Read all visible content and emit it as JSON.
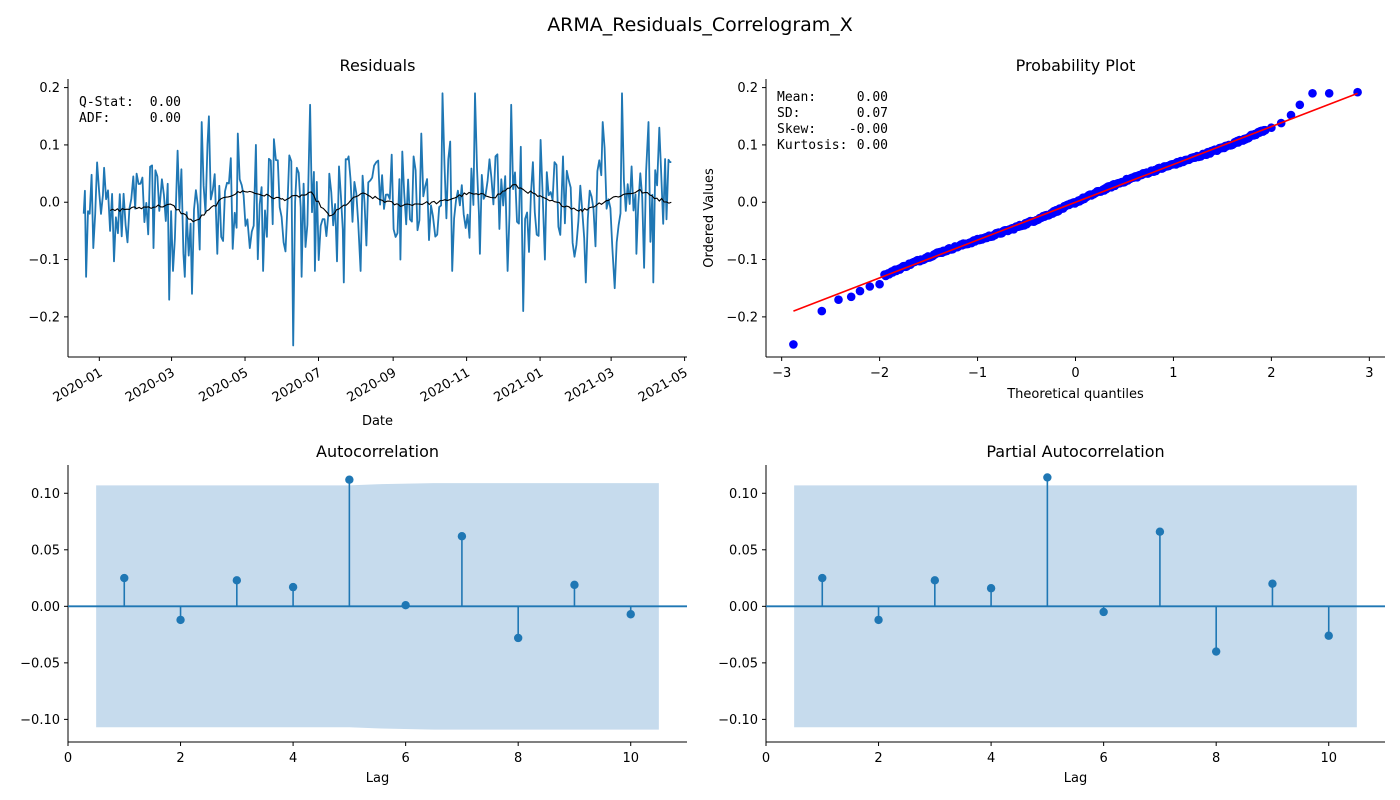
{
  "figure": {
    "title": "ARMA_Residuals_Correlogram_X"
  },
  "chart_data": [
    {
      "id": "residuals",
      "type": "line",
      "title": "Residuals",
      "xlabel": "Date",
      "ylabel": "",
      "x_start": "2019-12-19",
      "x_end": "2021-04-20",
      "x_ticks": [
        "2020-01",
        "2020-03",
        "2020-05",
        "2020-07",
        "2020-09",
        "2020-11",
        "2021-01",
        "2021-03",
        "2021-05"
      ],
      "ylim": [
        -0.27,
        0.215
      ],
      "y_ticks": [
        -0.2,
        -0.1,
        0.0,
        0.1,
        0.2
      ],
      "y_tick_labels": [
        "−0.2",
        "−0.1",
        "0.0",
        "0.1",
        "0.2"
      ],
      "series": [
        {
          "kind": "residual",
          "color": "#1f77b4",
          "anchors": [
            [
              "2019-12-19",
              -0.02
            ],
            [
              "2019-12-20",
              0.02
            ],
            [
              "2019-12-21",
              -0.13
            ],
            [
              "2019-12-24",
              -0.02
            ],
            [
              "2019-12-27",
              -0.08
            ],
            [
              "2020-01-05",
              0.06
            ],
            [
              "2020-01-10",
              -0.05
            ],
            [
              "2020-02-01",
              0.05
            ],
            [
              "2020-02-15",
              -0.08
            ],
            [
              "2020-02-22",
              0.04
            ],
            [
              "2020-02-28",
              -0.17
            ],
            [
              "2020-03-06",
              0.09
            ],
            [
              "2020-03-12",
              -0.13
            ],
            [
              "2020-03-18",
              -0.16
            ],
            [
              "2020-03-26",
              0.14
            ],
            [
              "2020-04-01",
              0.15
            ],
            [
              "2020-04-08",
              -0.09
            ],
            [
              "2020-04-25",
              0.12
            ],
            [
              "2020-05-05",
              -0.08
            ],
            [
              "2020-05-10",
              0.1
            ],
            [
              "2020-05-16",
              -0.12
            ],
            [
              "2020-05-25",
              0.11
            ],
            [
              "2020-06-02",
              -0.07
            ],
            [
              "2020-06-10",
              -0.25
            ],
            [
              "2020-06-13",
              0.06
            ],
            [
              "2020-06-17",
              -0.13
            ],
            [
              "2020-06-24",
              0.17
            ],
            [
              "2020-06-28",
              -0.12
            ],
            [
              "2020-07-10",
              0.05
            ],
            [
              "2020-07-22",
              -0.14
            ],
            [
              "2020-07-26",
              0.08
            ],
            [
              "2020-08-05",
              -0.12
            ],
            [
              "2020-08-18",
              0.07
            ],
            [
              "2020-09-07",
              -0.1
            ],
            [
              "2020-09-18",
              0.08
            ],
            [
              "2020-10-06",
              -0.06
            ],
            [
              "2020-10-12",
              0.19
            ],
            [
              "2020-10-20",
              -0.12
            ],
            [
              "2020-11-08",
              0.19
            ],
            [
              "2020-11-12",
              -0.09
            ],
            [
              "2020-11-25",
              0.08
            ],
            [
              "2020-12-05",
              -0.12
            ],
            [
              "2020-12-08",
              0.17
            ],
            [
              "2020-12-18",
              -0.19
            ],
            [
              "2020-12-26",
              0.07
            ],
            [
              "2021-01-05",
              -0.1
            ],
            [
              "2021-01-20",
              0.08
            ],
            [
              "2021-02-08",
              -0.14
            ],
            [
              "2021-02-22",
              0.14
            ],
            [
              "2021-03-04",
              -0.15
            ],
            [
              "2021-03-10",
              0.19
            ],
            [
              "2021-03-22",
              -0.09
            ],
            [
              "2021-04-01",
              0.14
            ],
            [
              "2021-04-05",
              -0.14
            ],
            [
              "2021-04-10",
              0.13
            ],
            [
              "2021-04-16",
              -0.03
            ],
            [
              "2021-04-19",
              0.07
            ],
            [
              "2021-04-20",
              0.07
            ]
          ]
        },
        {
          "kind": "rolling_mean",
          "color": "#000000",
          "points": [
            [
              "2020-01-10",
              -0.015
            ],
            [
              "2020-02-01",
              -0.01
            ],
            [
              "2020-03-01",
              -0.005
            ],
            [
              "2020-03-20",
              -0.035
            ],
            [
              "2020-04-15",
              0.01
            ],
            [
              "2020-05-01",
              0.02
            ],
            [
              "2020-06-01",
              0.005
            ],
            [
              "2020-06-25",
              0.015
            ],
            [
              "2020-07-10",
              -0.025
            ],
            [
              "2020-08-05",
              0.015
            ],
            [
              "2020-09-05",
              -0.005
            ],
            [
              "2020-10-10",
              0.0
            ],
            [
              "2020-11-01",
              0.015
            ],
            [
              "2020-11-25",
              0.01
            ],
            [
              "2020-12-10",
              0.03
            ],
            [
              "2021-01-05",
              0.005
            ],
            [
              "2021-02-05",
              -0.015
            ],
            [
              "2021-03-05",
              0.01
            ],
            [
              "2021-03-25",
              0.02
            ],
            [
              "2021-04-10",
              0.005
            ],
            [
              "2021-04-20",
              0.0
            ]
          ]
        }
      ],
      "annotations": [
        {
          "label": "Q-Stat:",
          "value": "0.00"
        },
        {
          "label": "ADF:",
          "value": "0.00"
        }
      ]
    },
    {
      "id": "probability_plot",
      "type": "scatter",
      "title": "Probability Plot",
      "xlabel": "Theoretical quantiles",
      "ylabel": "Ordered Values",
      "xlim": [
        -3.16,
        3.16
      ],
      "ylim": [
        -0.27,
        0.215
      ],
      "x_ticks": [
        -3,
        -2,
        -1,
        0,
        1,
        2,
        3
      ],
      "x_tick_labels": [
        "−3",
        "−2",
        "−1",
        "0",
        "1",
        "2",
        "3"
      ],
      "y_ticks": [
        -0.2,
        -0.1,
        0.0,
        0.1,
        0.2
      ],
      "y_tick_labels": [
        "−0.2",
        "−0.1",
        "0.0",
        "0.1",
        "0.2"
      ],
      "point_color": "#0000ff",
      "line_color": "#ff0000",
      "fit_line": {
        "x": [
          -2.88,
          2.88
        ],
        "y": [
          -0.19,
          0.19
        ]
      },
      "tail_points": [
        [
          -2.88,
          -0.248
        ],
        [
          -2.59,
          -0.19
        ],
        [
          -2.42,
          -0.17
        ],
        [
          -2.29,
          -0.165
        ],
        [
          -2.2,
          -0.155
        ],
        [
          -2.1,
          -0.147
        ],
        [
          -2.0,
          -0.143
        ],
        [
          2.0,
          0.13
        ],
        [
          2.1,
          0.138
        ],
        [
          2.2,
          0.152
        ],
        [
          2.29,
          0.17
        ],
        [
          2.42,
          0.19
        ],
        [
          2.59,
          0.19
        ],
        [
          2.88,
          0.192
        ]
      ],
      "annotations": [
        {
          "label": "Mean:",
          "value": "0.00"
        },
        {
          "label": "SD:",
          "value": "0.07"
        },
        {
          "label": "Skew:",
          "value": "-0.00"
        },
        {
          "label": "Kurtosis:",
          "value": "0.00"
        }
      ]
    },
    {
      "id": "acf",
      "type": "stem",
      "title": "Autocorrelation",
      "xlabel": "Lag",
      "ylabel": "",
      "xlim": [
        0,
        11
      ],
      "ylim": [
        -0.12,
        0.125
      ],
      "x_ticks": [
        0,
        2,
        4,
        6,
        8,
        10
      ],
      "y_ticks": [
        -0.1,
        -0.05,
        0.0,
        0.05,
        0.1
      ],
      "y_tick_labels": [
        "−0.10",
        "−0.05",
        "0.00",
        "0.05",
        "0.10"
      ],
      "color": "#1f77b4",
      "band_color": "#c6dbed",
      "lags": [
        1,
        2,
        3,
        4,
        5,
        6,
        7,
        8,
        9,
        10
      ],
      "values": [
        0.025,
        -0.012,
        0.023,
        0.017,
        0.112,
        0.001,
        0.062,
        -0.028,
        0.019,
        -0.007
      ],
      "confidence_band": {
        "x": [
          0.5,
          5.0,
          5.5,
          6.5,
          7.5,
          10.5
        ],
        "upper": [
          0.107,
          0.107,
          0.108,
          0.109,
          0.109,
          0.109
        ],
        "lower": [
          -0.107,
          -0.107,
          -0.108,
          -0.109,
          -0.109,
          -0.109
        ]
      }
    },
    {
      "id": "pacf",
      "type": "stem",
      "title": "Partial Autocorrelation",
      "xlabel": "Lag",
      "ylabel": "",
      "xlim": [
        0,
        11
      ],
      "ylim": [
        -0.12,
        0.125
      ],
      "x_ticks": [
        0,
        2,
        4,
        6,
        8,
        10
      ],
      "y_ticks": [
        -0.1,
        -0.05,
        0.0,
        0.05,
        0.1
      ],
      "y_tick_labels": [
        "−0.10",
        "−0.05",
        "0.00",
        "0.05",
        "0.10"
      ],
      "color": "#1f77b4",
      "band_color": "#c6dbed",
      "lags": [
        1,
        2,
        3,
        4,
        5,
        6,
        7,
        8,
        9,
        10
      ],
      "values": [
        0.025,
        -0.012,
        0.023,
        0.016,
        0.114,
        -0.005,
        0.066,
        -0.04,
        0.02,
        -0.026
      ],
      "confidence_band": {
        "x": [
          0.5,
          10.5
        ],
        "upper": [
          0.107,
          0.107
        ],
        "lower": [
          -0.107,
          -0.107
        ]
      }
    }
  ]
}
